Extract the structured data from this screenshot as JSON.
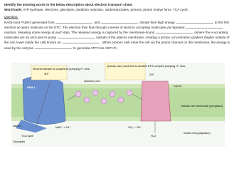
{
  "header": {
    "title": "Identify the missing words in the below description about electron transport chain.",
    "word_bank_label": "Word bank:",
    "word_bank": "ATP synthase, electrons, glycolysis, oxidation reduction, oxidoreductases, protons, proton motive force, TCA cycle,"
  },
  "question": {
    "label": "Question:",
    "segments": [
      "NADH and FADH2 generated from",
      "and",
      "donate their high energy",
      "to the first electron acceptor molecule on the ETC. The electron then flow through a series of electron accepting molecules via repeated",
      "reaction, releasing some energy at each step. The released energy is captured by the membrane-bound",
      "(where the e-accepting molecules are in) and used to pump",
      "outside of the plasma membrane, creating a proton concentration gradient (higher outside of the cell, lower inside the cell) known as",
      ". When protons rush enter the cell via the proton channel on the membrane, the energy is used by the enzyme",
      "to generate ATP from ADP+Pi."
    ]
  },
  "diagram": {
    "coupled": "Electron transfer is coupled to pumping H⁺ ions.",
    "ndh": "NDH-1",
    "quinone_pool": "Quinone pool",
    "quinols": "Quinols carry electrons to another ETS complex pumping H⁺ ions.",
    "cyt": "Cyt bo",
    "outside": "Outside cell membrane (periplasm)",
    "inside": "Inside cell (cytoplasm)",
    "tca": "TCA cycle",
    "glycolysis": "Glycolysis",
    "nadh": "NADH",
    "nad": "NAD⁺ + 2H⁺",
    "h4": "4H⁺",
    "h2": "2H⁺",
    "o2": "½O₂ + 2H⁺",
    "h2o": "H₂O"
  }
}
